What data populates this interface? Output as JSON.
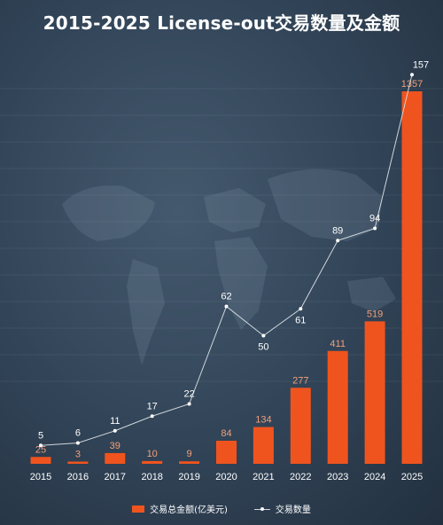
{
  "title": "2015-2025 License-out交易数量及金额",
  "colors": {
    "bar": "#f0541e",
    "bar_label": "#f2a07a",
    "line": "#cfd6dc",
    "line_label": "#ffffff",
    "axis_label": "#ffffff"
  },
  "legend": {
    "bar_label": "交易总金额(亿美元)",
    "line_label": "交易数量"
  },
  "chart_data": {
    "type": "bar",
    "categories": [
      "2015",
      "2016",
      "2017",
      "2018",
      "2019",
      "2020",
      "2021",
      "2022",
      "2023",
      "2024",
      "2025"
    ],
    "series": [
      {
        "name": "交易总金额(亿美元)",
        "type": "bar",
        "values": [
          25,
          3,
          39,
          10,
          9,
          84,
          134,
          277,
          411,
          519,
          1357
        ]
      },
      {
        "name": "交易数量",
        "type": "line",
        "values": [
          5,
          6,
          11,
          17,
          22,
          62,
          50,
          61,
          89,
          94,
          157
        ]
      }
    ],
    "grid": false,
    "legend_position": "bottom"
  }
}
